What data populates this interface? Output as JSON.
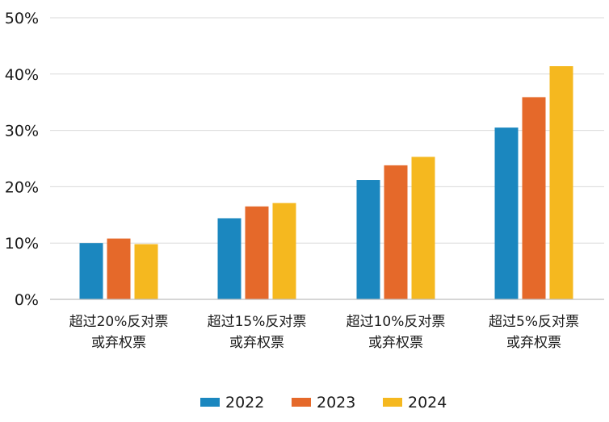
{
  "chart_data": {
    "type": "bar",
    "categories": [
      [
        "超过20%反对票",
        "或弃权票"
      ],
      [
        "超过15%反对票",
        "或弃权票"
      ],
      [
        "超过10%反对票",
        "或弃权票"
      ],
      [
        "超过5%反对票",
        "或弃权票"
      ]
    ],
    "series": [
      {
        "name": "2022",
        "color": "#1b87bf",
        "values": [
          10.0,
          14.4,
          21.2,
          30.5
        ]
      },
      {
        "name": "2023",
        "color": "#e5692a",
        "values": [
          10.8,
          16.5,
          23.8,
          35.9
        ]
      },
      {
        "name": "2024",
        "color": "#f5b81f",
        "values": [
          9.8,
          17.1,
          25.3,
          41.4
        ]
      }
    ],
    "y_ticks": [
      "0%",
      "10%",
      "20%",
      "30%",
      "40%",
      "50%"
    ],
    "ylim": [
      0,
      50
    ],
    "grid": true,
    "legend_position": "bottom-center"
  }
}
